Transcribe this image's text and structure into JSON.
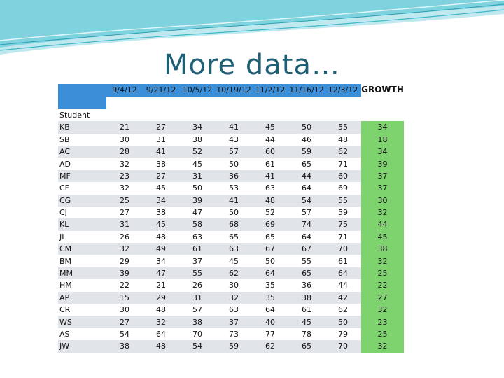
{
  "slide": {
    "title": "More data…"
  },
  "table": {
    "dates": [
      "9/4/12",
      "9/21/12",
      "10/5/12",
      "10/19/12",
      "11/2/12",
      "11/16/12",
      "12/3/12"
    ],
    "growth_header": "GROWTH",
    "student_header": "Student",
    "rows": [
      {
        "name": "KB",
        "scores": [
          "21",
          "27",
          "34",
          "41",
          "45",
          "50",
          "55"
        ],
        "growth": "34"
      },
      {
        "name": "SB",
        "scores": [
          "30",
          "31",
          "38",
          "43",
          "44",
          "46",
          "48"
        ],
        "growth": "18"
      },
      {
        "name": "AC",
        "scores": [
          "28",
          "41",
          "52",
          "57",
          "60",
          "59",
          "62"
        ],
        "growth": "34"
      },
      {
        "name": "AD",
        "scores": [
          "32",
          "38",
          "45",
          "50",
          "61",
          "65",
          "71"
        ],
        "growth": "39"
      },
      {
        "name": "MF",
        "scores": [
          "23",
          "27",
          "31",
          "36",
          "41",
          "44",
          "60"
        ],
        "growth": "37"
      },
      {
        "name": "CF",
        "scores": [
          "32",
          "45",
          "50",
          "53",
          "63",
          "64",
          "69"
        ],
        "growth": "37"
      },
      {
        "name": "CG",
        "scores": [
          "25",
          "34",
          "39",
          "41",
          "48",
          "54",
          "55"
        ],
        "growth": "30"
      },
      {
        "name": "CJ",
        "scores": [
          "27",
          "38",
          "47",
          "50",
          "52",
          "57",
          "59"
        ],
        "growth": "32"
      },
      {
        "name": "KL",
        "scores": [
          "31",
          "45",
          "58",
          "68",
          "69",
          "74",
          "75"
        ],
        "growth": "44"
      },
      {
        "name": "JL",
        "scores": [
          "26",
          "48",
          "63",
          "65",
          "65",
          "64",
          "71"
        ],
        "growth": "45"
      },
      {
        "name": "CM",
        "scores": [
          "32",
          "49",
          "61",
          "63",
          "67",
          "67",
          "70"
        ],
        "growth": "38"
      },
      {
        "name": "BM",
        "scores": [
          "29",
          "34",
          "37",
          "45",
          "50",
          "55",
          "61"
        ],
        "growth": "32"
      },
      {
        "name": "MM",
        "scores": [
          "39",
          "47",
          "55",
          "62",
          "64",
          "65",
          "64"
        ],
        "growth": "25"
      },
      {
        "name": "HM",
        "scores": [
          "22",
          "21",
          "26",
          "30",
          "35",
          "36",
          "44"
        ],
        "growth": "22"
      },
      {
        "name": "AP",
        "scores": [
          "15",
          "29",
          "31",
          "32",
          "35",
          "38",
          "42"
        ],
        "growth": "27"
      },
      {
        "name": "CR",
        "scores": [
          "30",
          "48",
          "57",
          "63",
          "64",
          "61",
          "62"
        ],
        "growth": "32"
      },
      {
        "name": "WS",
        "scores": [
          "27",
          "32",
          "38",
          "37",
          "40",
          "45",
          "50"
        ],
        "growth": "23"
      },
      {
        "name": "AS",
        "scores": [
          "54",
          "64",
          "70",
          "73",
          "77",
          "78",
          "79"
        ],
        "growth": "25"
      },
      {
        "name": "JW",
        "scores": [
          "38",
          "48",
          "54",
          "59",
          "62",
          "65",
          "70"
        ],
        "growth": "32"
      }
    ]
  },
  "colors": {
    "title": "#1f5f76",
    "header_blue": "#3b8fd9",
    "growth_green": "#7ed36f",
    "band_gray": "#e1e4e8",
    "wave_teal": "#3fb7c9"
  }
}
